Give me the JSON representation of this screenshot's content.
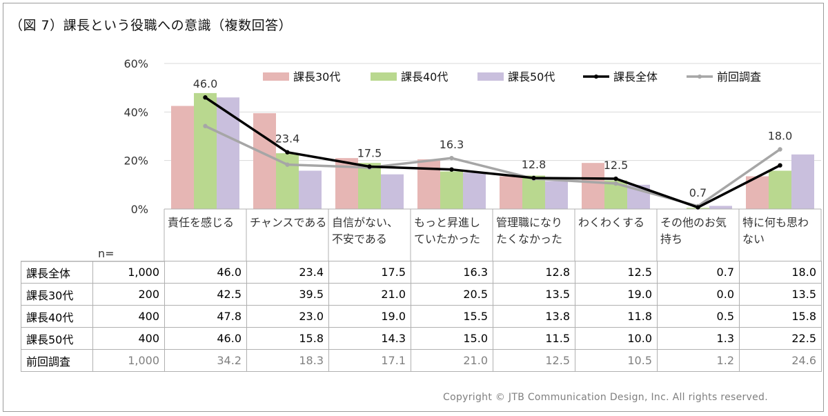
{
  "title": "（図 7）課長という役職への意識（複数回答）",
  "n_label": "n=",
  "copyright": "Copyright © JTB Communication Design, Inc. All rights reserved.",
  "colors": {
    "s30": "#e6b6b4",
    "s40": "#b9d88f",
    "s50": "#c9bfdd",
    "total": "#000000",
    "prev": "#a6a6a6",
    "grid": "#d9d9d9",
    "border": "#b0b0b0"
  },
  "chart_data": {
    "type": "bar",
    "title": "（図 7）課長という役職への意識（複数回答）",
    "categories": [
      "責任を感じる",
      "チャンスである",
      "自信がない、不安である",
      "もっと昇進していたかった",
      "管理職になりたくなかった",
      "わくわくする",
      "その他のお気持ち",
      "特に何も思わない"
    ],
    "category_lines": [
      [
        "責任を感じる"
      ],
      [
        "チャンスである"
      ],
      [
        "自信がない、",
        "不安である"
      ],
      [
        "もっと昇進し",
        "ていたかった"
      ],
      [
        "管理職になり",
        "たくなかった"
      ],
      [
        "わくわくする"
      ],
      [
        "その他のお気",
        "持ち"
      ],
      [
        "特に何も思わ",
        "ない"
      ]
    ],
    "yticks": [
      "0%",
      "20%",
      "40%",
      "60%"
    ],
    "ylim": [
      0,
      60
    ],
    "legend_position": "top",
    "series": [
      {
        "name": "課長30代",
        "type": "bar",
        "n": "200",
        "values": [
          42.5,
          39.5,
          21.0,
          20.5,
          13.5,
          19.0,
          0.0,
          13.5
        ]
      },
      {
        "name": "課長40代",
        "type": "bar",
        "n": "400",
        "values": [
          47.8,
          23.0,
          19.0,
          15.5,
          13.8,
          11.8,
          0.5,
          15.8
        ]
      },
      {
        "name": "課長50代",
        "type": "bar",
        "n": "400",
        "values": [
          46.0,
          15.8,
          14.3,
          15.0,
          11.5,
          10.0,
          1.3,
          22.5
        ]
      },
      {
        "name": "課長全体",
        "type": "line",
        "n": "1,000",
        "values": [
          46.0,
          23.4,
          17.5,
          16.3,
          12.8,
          12.5,
          0.7,
          18.0
        ]
      },
      {
        "name": "前回調査",
        "type": "line",
        "n": "1,000",
        "values": [
          34.2,
          18.3,
          17.1,
          21.0,
          12.5,
          10.5,
          1.2,
          24.6
        ]
      }
    ],
    "data_labels": [
      "46.0",
      "23.4",
      "17.5",
      "16.3",
      "12.8",
      "12.5",
      "0.7",
      "18.0"
    ]
  },
  "table": {
    "rows": [
      {
        "name": "課長全体",
        "n": "1,000",
        "values": [
          "46.0",
          "23.4",
          "17.5",
          "16.3",
          "12.8",
          "12.5",
          "0.7",
          "18.0"
        ]
      },
      {
        "name": "課長30代",
        "n": "200",
        "values": [
          "42.5",
          "39.5",
          "21.0",
          "20.5",
          "13.5",
          "19.0",
          "0.0",
          "13.5"
        ]
      },
      {
        "name": "課長40代",
        "n": "400",
        "values": [
          "47.8",
          "23.0",
          "19.0",
          "15.5",
          "13.8",
          "11.8",
          "0.5",
          "15.8"
        ]
      },
      {
        "name": "課長50代",
        "n": "400",
        "values": [
          "46.0",
          "15.8",
          "14.3",
          "15.0",
          "11.5",
          "10.0",
          "1.3",
          "22.5"
        ]
      },
      {
        "name": "前回調査",
        "n": "1,000",
        "values": [
          "34.2",
          "18.3",
          "17.1",
          "21.0",
          "12.5",
          "10.5",
          "1.2",
          "24.6"
        ]
      }
    ]
  }
}
